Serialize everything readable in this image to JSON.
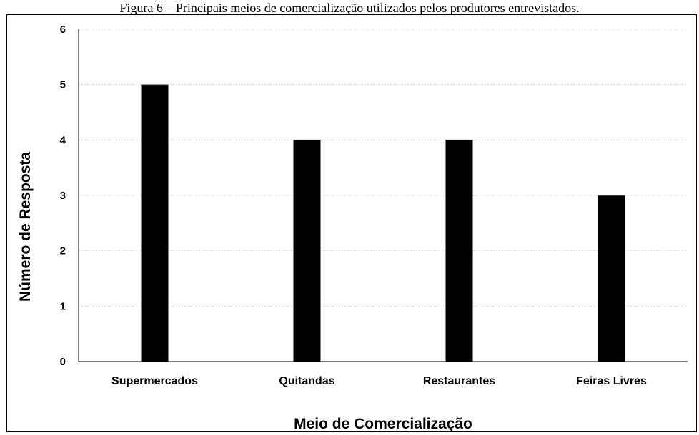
{
  "caption": "Figura 6 – Principais meios de comercialização utilizados pelos produtores entrevistados.",
  "chart_data": {
    "type": "bar",
    "title": "",
    "categories": [
      "Supermercados",
      "Quitandas",
      "Restaurantes",
      "Feiras Livres"
    ],
    "values": [
      5,
      4,
      4,
      3
    ],
    "xlabel": "Meio de Comercialização",
    "ylabel": "Número de Resposta",
    "ylim": [
      0,
      6
    ],
    "yticks": [
      "0",
      "1",
      "2",
      "3",
      "4",
      "5",
      "6"
    ],
    "grid": true,
    "legend": "none",
    "bar_color": "#000000",
    "grid_color": "#d9d9d9"
  }
}
